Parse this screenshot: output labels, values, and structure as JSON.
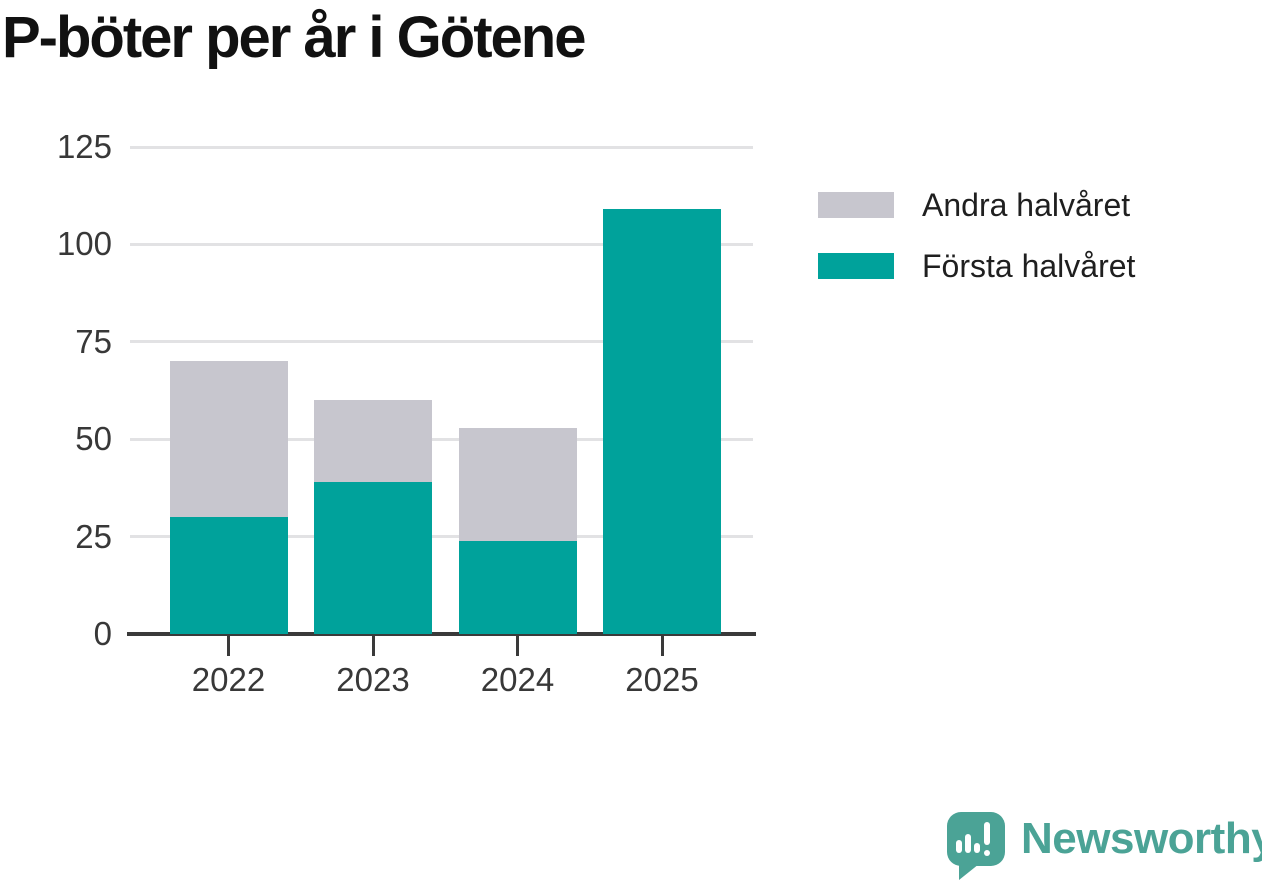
{
  "title": "P-böter per år i Götene",
  "chart_data": {
    "type": "bar",
    "stacked": true,
    "title": "P-böter per år i Götene",
    "categories": [
      "2022",
      "2023",
      "2024",
      "2025"
    ],
    "series": [
      {
        "name": "Första halvåret",
        "color": "#00a29b",
        "values": [
          30,
          39,
          24,
          109
        ]
      },
      {
        "name": "Andra halvåret",
        "color": "#c7c6ce",
        "values": [
          40,
          21,
          29,
          0
        ]
      }
    ],
    "totals": [
      70,
      60,
      53,
      109
    ],
    "xlabel": "",
    "ylabel": "",
    "ylim": [
      0,
      125
    ],
    "yticks": [
      0,
      25,
      50,
      75,
      100,
      125
    ],
    "grid": true,
    "legend_position": "right-top"
  },
  "legend": {
    "items": [
      {
        "label": "Andra halvåret",
        "color": "#c7c6ce"
      },
      {
        "label": "Första halvåret",
        "color": "#00a29b"
      }
    ]
  },
  "branding": {
    "logo_text": "Newsworthy",
    "logo_color": "#4ba396",
    "logo_icon": "newsworthy-speech-bubble-bar-chart-icon"
  },
  "colors": {
    "first_half": "#00a29b",
    "second_half": "#c7c6ce",
    "gridline": "#e2e2e4",
    "axis": "#3a3a3a",
    "tick_text": "#383838",
    "title_text": "#111111",
    "background": "#ffffff"
  }
}
